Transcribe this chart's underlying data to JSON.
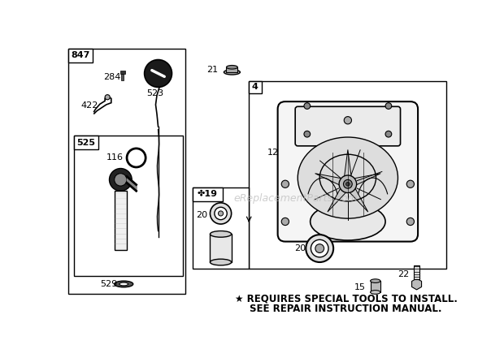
{
  "bg_color": "#ffffff",
  "watermark": "eReplacementParts.com",
  "footer_line1": "★ REQUIRES SPECIAL TOOLS TO INSTALL.",
  "footer_line2": "SEE REPAIR INSTRUCTION MANUAL.",
  "fig_w": 6.2,
  "fig_h": 4.46,
  "dpi": 100
}
